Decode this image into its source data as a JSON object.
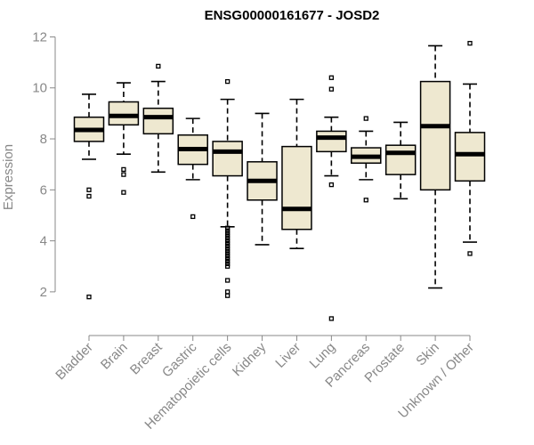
{
  "chart_data": {
    "type": "boxplot",
    "title": "ENSG00000161677 - JOSD2",
    "ylabel": "Expression",
    "xlabel": "",
    "ylim": [
      0.6,
      12.4
    ],
    "yticks": [
      2,
      4,
      6,
      8,
      10,
      12
    ],
    "grid": false,
    "categories": [
      "Bladder",
      "Brain",
      "Breast",
      "Gastric",
      "Hematopoietic cells",
      "Kidney",
      "Liver",
      "Lung",
      "Pancreas",
      "Prostate",
      "Skin",
      "Unknown / Other"
    ],
    "box_fill": "#eee8d0",
    "series": [
      {
        "category": "Bladder",
        "whisker_low": 7.2,
        "q1": 7.9,
        "median": 8.35,
        "q3": 8.85,
        "whisker_high": 9.75,
        "outliers": [
          6.0,
          5.75,
          1.8
        ]
      },
      {
        "category": "Brain",
        "whisker_low": 7.4,
        "q1": 8.55,
        "median": 8.9,
        "q3": 9.45,
        "whisker_high": 10.2,
        "outliers": [
          6.8,
          6.6,
          5.9
        ]
      },
      {
        "category": "Breast",
        "whisker_low": 6.7,
        "q1": 8.2,
        "median": 8.85,
        "q3": 9.2,
        "whisker_high": 10.25,
        "outliers": [
          10.85
        ]
      },
      {
        "category": "Gastric",
        "whisker_low": 6.4,
        "q1": 7.0,
        "median": 7.6,
        "q3": 8.15,
        "whisker_high": 8.8,
        "outliers": [
          4.95
        ]
      },
      {
        "category": "Hematopoietic cells",
        "whisker_low": 4.55,
        "q1": 6.55,
        "median": 7.5,
        "q3": 7.9,
        "whisker_high": 9.55,
        "outliers": [
          10.25,
          4.5,
          4.4,
          4.3,
          4.2,
          4.1,
          4.0,
          3.9,
          3.8,
          3.7,
          3.6,
          3.5,
          3.4,
          3.3,
          3.2,
          3.1,
          3.0,
          2.45,
          2.0,
          1.85
        ]
      },
      {
        "category": "Kidney",
        "whisker_low": 3.85,
        "q1": 5.6,
        "median": 6.35,
        "q3": 7.1,
        "whisker_high": 9.0,
        "outliers": []
      },
      {
        "category": "Liver",
        "whisker_low": 3.7,
        "q1": 4.45,
        "median": 5.25,
        "q3": 7.7,
        "whisker_high": 9.55,
        "outliers": []
      },
      {
        "category": "Lung",
        "whisker_low": 6.55,
        "q1": 7.5,
        "median": 8.05,
        "q3": 8.3,
        "whisker_high": 8.85,
        "outliers": [
          10.4,
          9.95,
          6.2,
          0.95
        ]
      },
      {
        "category": "Pancreas",
        "whisker_low": 6.4,
        "q1": 7.05,
        "median": 7.3,
        "q3": 7.65,
        "whisker_high": 8.3,
        "outliers": [
          8.8,
          5.6
        ]
      },
      {
        "category": "Prostate",
        "whisker_low": 5.65,
        "q1": 6.6,
        "median": 7.45,
        "q3": 7.75,
        "whisker_high": 8.65,
        "outliers": []
      },
      {
        "category": "Skin",
        "whisker_low": 2.15,
        "q1": 6.0,
        "median": 8.5,
        "q3": 10.25,
        "whisker_high": 11.65,
        "outliers": []
      },
      {
        "category": "Unknown / Other",
        "whisker_low": 3.95,
        "q1": 6.35,
        "median": 7.4,
        "q3": 8.25,
        "whisker_high": 10.15,
        "outliers": [
          11.75,
          3.5
        ]
      }
    ]
  }
}
